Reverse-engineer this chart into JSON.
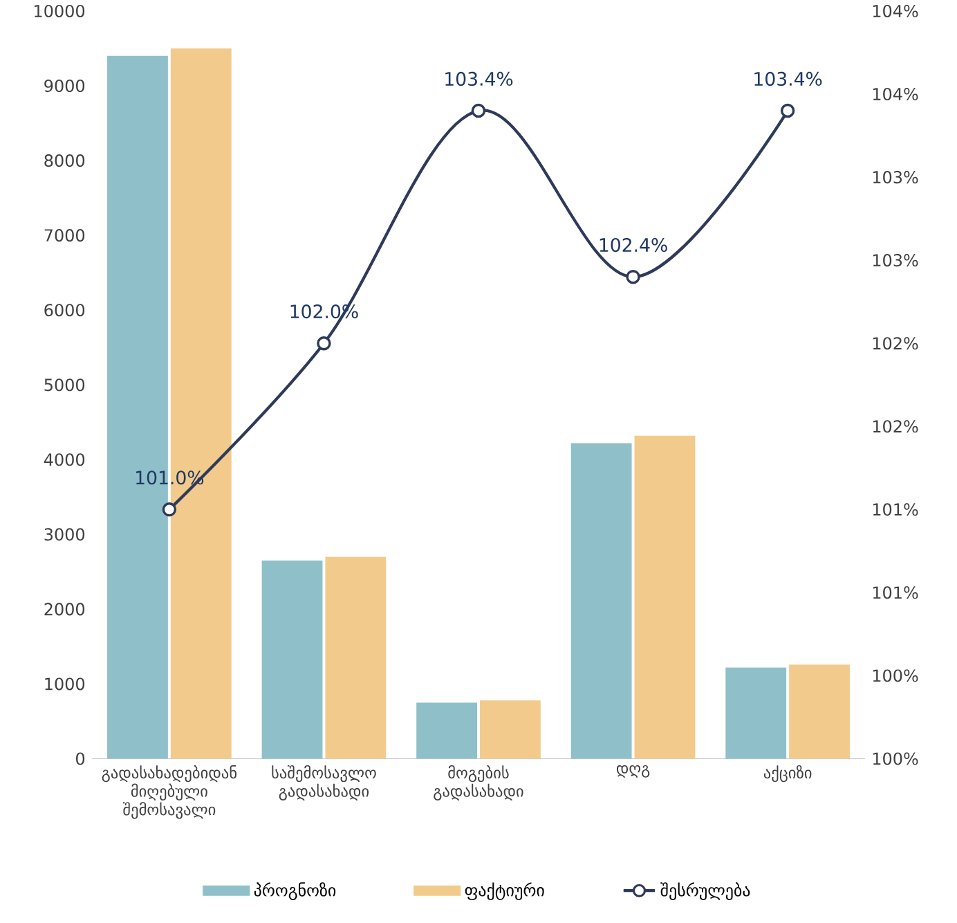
{
  "chart_data": {
    "type": "bar",
    "categories": [
      "გადასახადებიდან მიღებული შემოსავალი",
      "საშემოსავლო გადასახადი",
      "მოგების გადასახადი",
      "დღგ",
      "აქციზი"
    ],
    "series": [
      {
        "name": "პროგნოზი",
        "color": "#8fc0c9",
        "values": [
          9400,
          2650,
          750,
          4220,
          1220
        ]
      },
      {
        "name": "ფაქტიური",
        "color": "#f2cb8c",
        "values": [
          9500,
          2700,
          780,
          4320,
          1260
        ]
      },
      {
        "name": "შესრულება",
        "type": "line",
        "axis": "y2",
        "color": "#2e3a59",
        "marker": "circle",
        "values": [
          101.0,
          102.0,
          103.4,
          102.4,
          103.4
        ],
        "value_labels": [
          "101.0%",
          "102.0%",
          "103.4%",
          "102.4%",
          "103.4%"
        ]
      }
    ],
    "ylim": [
      0,
      10000
    ],
    "yticks": [
      0,
      1000,
      2000,
      3000,
      4000,
      5000,
      6000,
      7000,
      8000,
      9000,
      10000
    ],
    "y2lim": [
      99.5,
      104
    ],
    "y2ticks": [
      {
        "value": 99.5,
        "label": "100%"
      },
      {
        "value": 100,
        "label": "100%"
      },
      {
        "value": 100.5,
        "label": "101%"
      },
      {
        "value": 101,
        "label": "101%"
      },
      {
        "value": 101.5,
        "label": "102%"
      },
      {
        "value": 102,
        "label": "102%"
      },
      {
        "value": 102.5,
        "label": "103%"
      },
      {
        "value": 103,
        "label": "103%"
      },
      {
        "value": 103.5,
        "label": "104%"
      },
      {
        "value": 104,
        "label": "104%"
      }
    ],
    "legend": "bottom",
    "grid": false
  }
}
